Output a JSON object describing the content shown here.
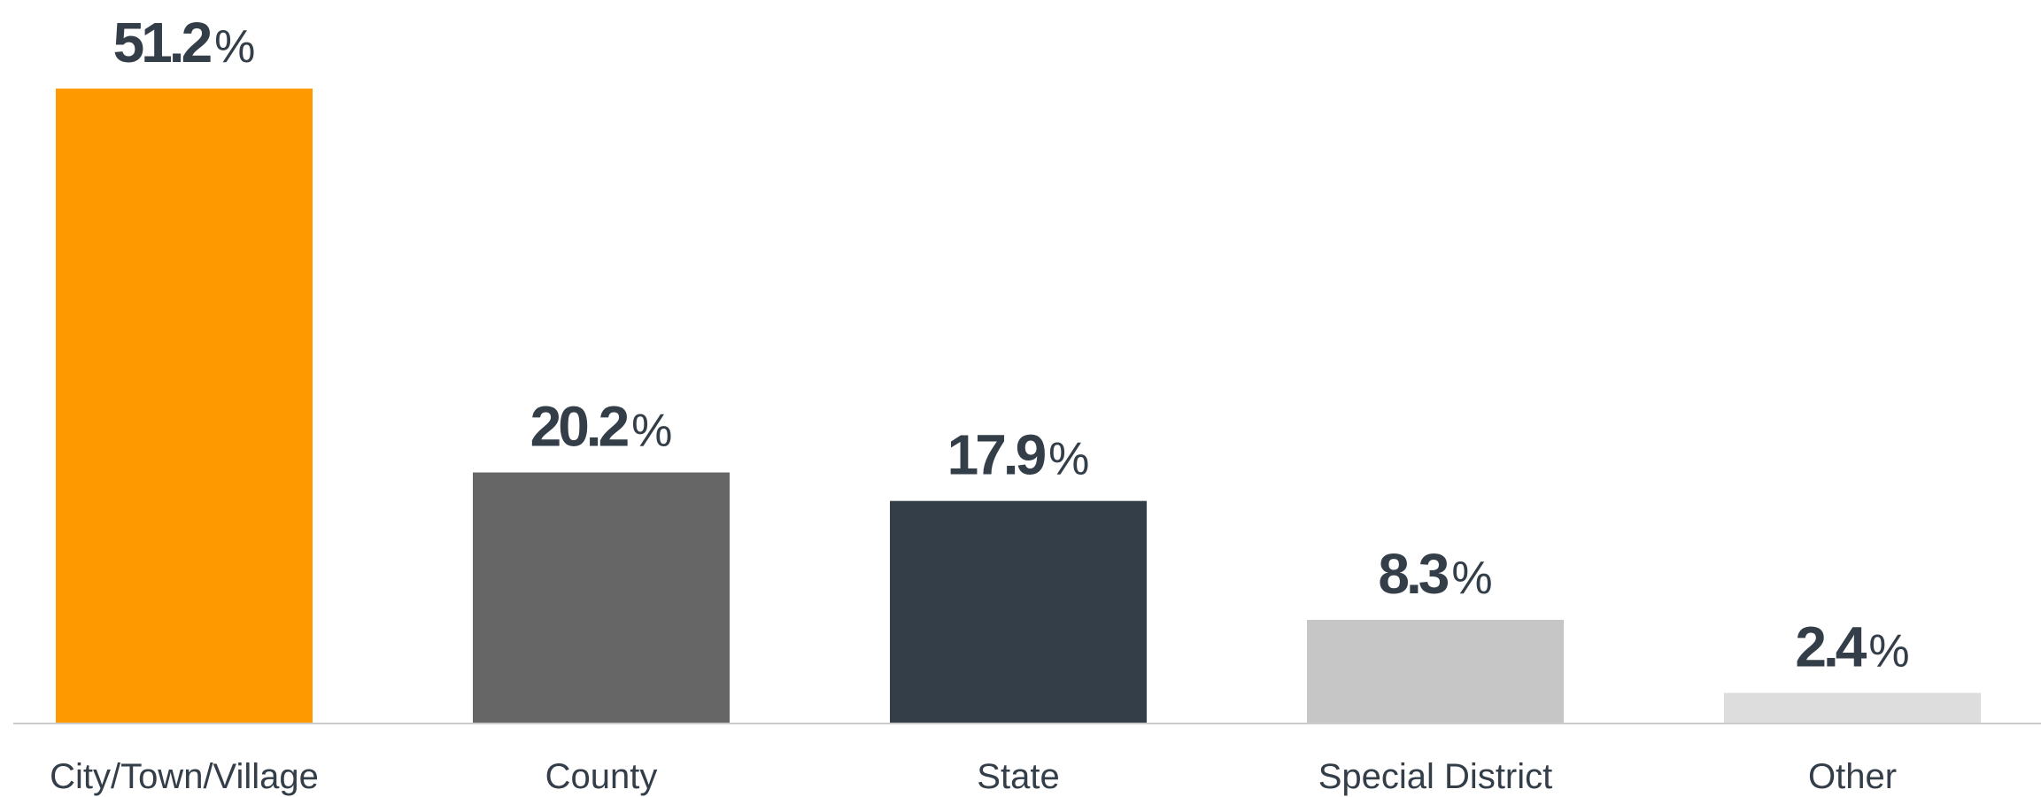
{
  "chart_data": {
    "type": "bar",
    "categories": [
      "City/Town/Village",
      "County",
      "State",
      "Special District",
      "Other"
    ],
    "values": [
      51.2,
      20.2,
      17.9,
      8.3,
      2.4
    ],
    "value_labels": [
      "51.2",
      "20.2",
      "17.9",
      "8.3",
      "2.4"
    ],
    "unit": "%",
    "colors": [
      "#FF9900",
      "#666666",
      "#333E48",
      "#C6C6C6",
      "#DDDDDD"
    ],
    "label_color": "#333E48",
    "axis_color": "#CCCCCC",
    "category_label_color": "#333E48",
    "ylim": [
      0,
      51.2
    ],
    "grid": false,
    "legend": "none"
  }
}
